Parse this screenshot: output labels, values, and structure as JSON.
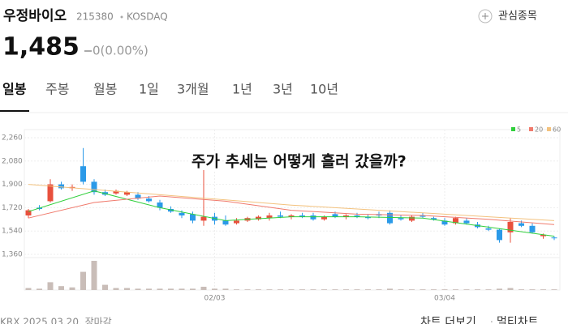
{
  "header": {
    "name": "우정바이오",
    "code": "215380",
    "market": "KOSDAQ",
    "watch": "관심종목"
  },
  "price": {
    "value": "1,485",
    "change": "0(0.00%)"
  },
  "tabs": [
    "일봉",
    "주봉",
    "월봉",
    "1일",
    "3개월",
    "1년",
    "3년",
    "10년"
  ],
  "overlay": "주가 추세는 어떻게 흘러 갔을까?",
  "footer": {
    "source": "KRX 2025.03.20. 장마감",
    "more": "차트 더보기",
    "multi": "멀티차트"
  },
  "chart_data": {
    "type": "candlestick",
    "categories": [
      null,
      null,
      null,
      null,
      null,
      null,
      null,
      null,
      null,
      null,
      null,
      null,
      null,
      null,
      null,
      null,
      null,
      "02/03",
      null,
      null,
      null,
      null,
      null,
      null,
      null,
      null,
      null,
      null,
      null,
      null,
      null,
      null,
      null,
      null,
      null,
      null,
      null,
      null,
      "03/04",
      null,
      null,
      null,
      null,
      null,
      null,
      null,
      null,
      null,
      null
    ],
    "open": [
      1660,
      1720,
      1770,
      1900,
      1870,
      2040,
      1920,
      1840,
      1830,
      1820,
      1820,
      1790,
      1760,
      1710,
      1680,
      1670,
      1620,
      1650,
      1620,
      1600,
      1620,
      1630,
      1640,
      1660,
      1650,
      1660,
      1660,
      1630,
      1670,
      1650,
      1660,
      1650,
      1670,
      1680,
      1640,
      1620,
      1660,
      1640,
      1620,
      1600,
      1620,
      1590,
      1560,
      1550,
      1530,
      1600,
      1580,
      1500,
      1490
    ],
    "high": [
      1710,
      1740,
      1940,
      1920,
      1900,
      2180,
      1940,
      1860,
      1860,
      1850,
      1840,
      1810,
      1780,
      1730,
      1700,
      1690,
      2010,
      1680,
      1660,
      1640,
      1650,
      1660,
      1680,
      1690,
      1670,
      1680,
      1680,
      1660,
      1690,
      1670,
      1680,
      1670,
      1690,
      1700,
      1660,
      1660,
      1680,
      1650,
      1640,
      1650,
      1640,
      1610,
      1580,
      1560,
      1640,
      1620,
      1600,
      1520,
      1500
    ],
    "low": [
      1640,
      1700,
      1760,
      1860,
      1850,
      1900,
      1820,
      1810,
      1820,
      1810,
      1780,
      1760,
      1700,
      1680,
      1640,
      1600,
      1580,
      1590,
      1580,
      1590,
      1610,
      1620,
      1620,
      1640,
      1630,
      1640,
      1620,
      1620,
      1640,
      1630,
      1640,
      1630,
      1640,
      1590,
      1620,
      1610,
      1640,
      1620,
      1580,
      1590,
      1590,
      1560,
      1540,
      1450,
      1450,
      1570,
      1520,
      1480,
      1470
    ],
    "close": [
      1700,
      1710,
      1900,
      1870,
      1880,
      1920,
      1840,
      1820,
      1850,
      1840,
      1790,
      1770,
      1720,
      1690,
      1660,
      1620,
      1650,
      1620,
      1590,
      1620,
      1640,
      1650,
      1660,
      1650,
      1660,
      1650,
      1630,
      1650,
      1650,
      1660,
      1650,
      1640,
      1660,
      1600,
      1630,
      1650,
      1650,
      1630,
      1590,
      1640,
      1600,
      1570,
      1550,
      1470,
      1610,
      1580,
      1530,
      1510,
      1485
    ],
    "volume": [
      3,
      2,
      12,
      6,
      4,
      28,
      45,
      8,
      3,
      3,
      2,
      2,
      2,
      2,
      2,
      2,
      5,
      2,
      2,
      1,
      1,
      1,
      1,
      1,
      1,
      1,
      1,
      1,
      1,
      1,
      1,
      1,
      1,
      2,
      1,
      1,
      1,
      1,
      1,
      1,
      1,
      1,
      1,
      2,
      3,
      1,
      1,
      1,
      1
    ],
    "up_color": "#e8503d",
    "down_color": "#2b9ae8",
    "ma": [
      {
        "name": "5",
        "color": "#2fcf3b",
        "x": [
          0,
          6,
          12,
          18,
          24,
          30,
          36,
          42,
          48
        ],
        "values": [
          1690,
          1850,
          1720,
          1620,
          1650,
          1650,
          1640,
          1570,
          1500
        ]
      },
      {
        "name": "20",
        "color": "#f07a6c",
        "x": [
          0,
          6,
          12,
          18,
          24,
          30,
          36,
          42,
          48
        ],
        "values": [
          1640,
          1760,
          1810,
          1770,
          1700,
          1670,
          1660,
          1630,
          1590
        ]
      },
      {
        "name": "60",
        "color": "#f3c27e",
        "x": [
          0,
          6,
          12,
          18,
          24,
          30,
          36,
          42,
          48
        ],
        "values": [
          1900,
          1860,
          1820,
          1780,
          1740,
          1710,
          1680,
          1650,
          1620
        ]
      }
    ],
    "ylim": [
      1360,
      2260
    ],
    "yticks": [
      {
        "value": 2260,
        "label": "2,260"
      },
      {
        "value": 2080,
        "label": "2,080"
      },
      {
        "value": 1900,
        "label": "1,900"
      },
      {
        "value": 1720,
        "label": "1,720"
      },
      {
        "value": 1540,
        "label": "1,540"
      },
      {
        "value": 1360,
        "label": "1,360"
      }
    ],
    "grid": true
  }
}
